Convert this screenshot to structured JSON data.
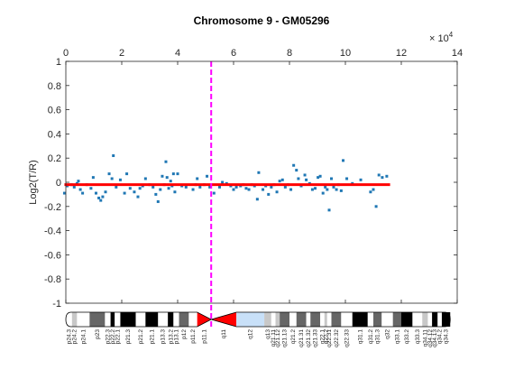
{
  "chart_data": {
    "type": "scatter",
    "title": "Chromosome 9 - GM05296",
    "xlabel": "",
    "ylabel": "Log2(T/R)",
    "x_exponent_label": "× 10",
    "x_exponent_power": "4",
    "xlim": [
      0,
      14
    ],
    "ylim": [
      -1,
      1
    ],
    "x_ticks": [
      "0",
      "2",
      "4",
      "6",
      "8",
      "10",
      "12",
      "14"
    ],
    "y_ticks": [
      "-1",
      "-0.8",
      "-0.6",
      "-0.4",
      "-0.2",
      "0",
      "0.2",
      "0.4",
      "0.6",
      "0.8",
      "1"
    ],
    "grid": false,
    "colors": {
      "points": "#1f77b4",
      "segment": "#ff0000",
      "centromere_line": "#ff00ff",
      "axes": "#262626"
    },
    "segment": {
      "x": [
        -0.05,
        11.6
      ],
      "y": -0.02
    },
    "centromere_x": 5.2,
    "points": [
      [
        -0.05,
        -0.09
      ],
      [
        0.05,
        -0.03
      ],
      [
        0.2,
        -0.02
      ],
      [
        0.3,
        -0.04
      ],
      [
        0.4,
        -0.01
      ],
      [
        0.45,
        0.01
      ],
      [
        0.52,
        -0.06
      ],
      [
        0.6,
        -0.09
      ],
      [
        0.75,
        -0.02
      ],
      [
        0.9,
        -0.05
      ],
      [
        0.98,
        0.04
      ],
      [
        1.08,
        -0.09
      ],
      [
        1.18,
        -0.13
      ],
      [
        1.25,
        -0.15
      ],
      [
        1.32,
        -0.12
      ],
      [
        1.42,
        -0.08
      ],
      [
        1.55,
        0.07
      ],
      [
        1.65,
        0.03
      ],
      [
        1.7,
        0.22
      ],
      [
        1.8,
        -0.04
      ],
      [
        1.95,
        0.02
      ],
      [
        2.1,
        -0.09
      ],
      [
        2.18,
        0.07
      ],
      [
        2.3,
        -0.05
      ],
      [
        2.45,
        -0.08
      ],
      [
        2.58,
        -0.12
      ],
      [
        2.65,
        -0.05
      ],
      [
        2.75,
        -0.03
      ],
      [
        2.85,
        0.03
      ],
      [
        3.0,
        -0.02
      ],
      [
        3.12,
        -0.04
      ],
      [
        3.22,
        -0.1
      ],
      [
        3.3,
        -0.16
      ],
      [
        3.38,
        -0.06
      ],
      [
        3.45,
        0.05
      ],
      [
        3.52,
        -0.02
      ],
      [
        3.58,
        0.17
      ],
      [
        3.62,
        0.04
      ],
      [
        3.68,
        -0.05
      ],
      [
        3.75,
        0.01
      ],
      [
        3.8,
        -0.03
      ],
      [
        3.85,
        0.07
      ],
      [
        3.9,
        -0.08
      ],
      [
        4.0,
        0.07
      ],
      [
        4.15,
        -0.03
      ],
      [
        4.3,
        -0.04
      ],
      [
        4.55,
        -0.06
      ],
      [
        4.65,
        -0.02
      ],
      [
        4.7,
        0.03
      ],
      [
        4.8,
        -0.04
      ],
      [
        4.95,
        -0.02
      ],
      [
        5.05,
        0.05
      ],
      [
        5.15,
        -0.04
      ],
      [
        5.3,
        -0.09
      ],
      [
        5.5,
        -0.04
      ],
      [
        5.6,
        0.0
      ],
      [
        5.75,
        -0.01
      ],
      [
        5.9,
        -0.03
      ],
      [
        6.0,
        -0.06
      ],
      [
        6.1,
        -0.04
      ],
      [
        6.25,
        -0.03
      ],
      [
        6.35,
        -0.02
      ],
      [
        6.45,
        -0.05
      ],
      [
        6.55,
        -0.06
      ],
      [
        6.65,
        -0.02
      ],
      [
        6.75,
        -0.03
      ],
      [
        6.85,
        -0.14
      ],
      [
        6.9,
        0.08
      ],
      [
        7.05,
        -0.06
      ],
      [
        7.15,
        -0.03
      ],
      [
        7.25,
        -0.1
      ],
      [
        7.35,
        -0.04
      ],
      [
        7.45,
        -0.02
      ],
      [
        7.55,
        -0.08
      ],
      [
        7.65,
        0.01
      ],
      [
        7.75,
        0.02
      ],
      [
        7.85,
        -0.04
      ],
      [
        7.95,
        -0.02
      ],
      [
        8.05,
        -0.06
      ],
      [
        8.15,
        0.14
      ],
      [
        8.25,
        0.1
      ],
      [
        8.32,
        0.03
      ],
      [
        8.42,
        -0.03
      ],
      [
        8.55,
        0.06
      ],
      [
        8.6,
        0.02
      ],
      [
        8.72,
        -0.01
      ],
      [
        8.82,
        -0.06
      ],
      [
        8.92,
        -0.05
      ],
      [
        9.02,
        0.04
      ],
      [
        9.1,
        0.05
      ],
      [
        9.2,
        -0.09
      ],
      [
        9.28,
        -0.04
      ],
      [
        9.35,
        -0.06
      ],
      [
        9.42,
        -0.23
      ],
      [
        9.5,
        0.03
      ],
      [
        9.58,
        -0.04
      ],
      [
        9.68,
        -0.06
      ],
      [
        9.75,
        -0.02
      ],
      [
        9.85,
        -0.07
      ],
      [
        9.92,
        0.18
      ],
      [
        10.05,
        0.03
      ],
      [
        10.25,
        -0.01
      ],
      [
        10.55,
        0.02
      ],
      [
        10.9,
        -0.08
      ],
      [
        11.0,
        -0.06
      ],
      [
        11.1,
        -0.2
      ],
      [
        11.2,
        0.06
      ],
      [
        11.32,
        0.04
      ],
      [
        11.48,
        0.05
      ]
    ],
    "ideogram": {
      "bands": [
        {
          "label": "p24.3",
          "x0": 0.0,
          "x1": 0.22,
          "color": "#ffffff"
        },
        {
          "label": "p24.2",
          "x0": 0.22,
          "x1": 0.4,
          "color": "#c8c8c8"
        },
        {
          "label": "p24.1",
          "x0": 0.4,
          "x1": 0.85,
          "color": "#ffffff"
        },
        {
          "label": "p23",
          "x0": 0.85,
          "x1": 1.4,
          "color": "#666666"
        },
        {
          "label": "p22.3",
          "x0": 1.4,
          "x1": 1.6,
          "color": "#ffffff"
        },
        {
          "label": "p22.2",
          "x0": 1.6,
          "x1": 1.75,
          "color": "#000000"
        },
        {
          "label": "p22.1",
          "x0": 1.75,
          "x1": 1.95,
          "color": "#ffffff"
        },
        {
          "label": "p21.3",
          "x0": 1.95,
          "x1": 2.5,
          "color": "#000000"
        },
        {
          "label": "p21.2",
          "x0": 2.5,
          "x1": 2.85,
          "color": "#ffffff"
        },
        {
          "label": "p21.1",
          "x0": 2.85,
          "x1": 3.3,
          "color": "#000000"
        },
        {
          "label": "p13.3",
          "x0": 3.3,
          "x1": 3.65,
          "color": "#ffffff"
        },
        {
          "label": "p13.2",
          "x0": 3.65,
          "x1": 3.85,
          "color": "#000000"
        },
        {
          "label": "p13.1",
          "x0": 3.85,
          "x1": 4.05,
          "color": "#ffffff"
        },
        {
          "label": "p12",
          "x0": 4.05,
          "x1": 4.4,
          "color": "#666666"
        },
        {
          "label": "p11.2",
          "x0": 4.4,
          "x1": 4.7,
          "color": "#ffffff"
        },
        {
          "label": "p11.1",
          "x0": 4.7,
          "x1": 5.2,
          "color": "#ff0000"
        },
        {
          "label": "q11",
          "x0": 5.2,
          "x1": 6.1,
          "color": "#ff0000"
        },
        {
          "label": "q12",
          "x0": 6.1,
          "x1": 7.1,
          "color": "#c8e0f8"
        },
        {
          "label": "q13",
          "x0": 7.1,
          "x1": 7.35,
          "color": "#c8c8c8"
        },
        {
          "label": "q21.11",
          "x0": 7.35,
          "x1": 7.5,
          "color": "#ffffff"
        },
        {
          "label": "q21.12",
          "x0": 7.5,
          "x1": 7.65,
          "color": "#c8c8c8"
        },
        {
          "label": "q21.13",
          "x0": 7.65,
          "x1": 8.0,
          "color": "#666666"
        },
        {
          "label": "q21.2",
          "x0": 8.0,
          "x1": 8.25,
          "color": "#ffffff"
        },
        {
          "label": "q21.31",
          "x0": 8.25,
          "x1": 8.6,
          "color": "#666666"
        },
        {
          "label": "q21.32",
          "x0": 8.6,
          "x1": 8.75,
          "color": "#ffffff"
        },
        {
          "label": "q21.33",
          "x0": 8.75,
          "x1": 9.1,
          "color": "#666666"
        },
        {
          "label": "q22.1",
          "x0": 9.1,
          "x1": 9.25,
          "color": "#ffffff"
        },
        {
          "label": "q22.2",
          "x0": 9.25,
          "x1": 9.35,
          "color": "#c8c8c8"
        },
        {
          "label": "q22.31",
          "x0": 9.35,
          "x1": 9.5,
          "color": "#ffffff"
        },
        {
          "label": "q22.32",
          "x0": 9.5,
          "x1": 9.85,
          "color": "#666666"
        },
        {
          "label": "q22.33",
          "x0": 9.85,
          "x1": 10.25,
          "color": "#ffffff"
        },
        {
          "label": "q31.1",
          "x0": 10.25,
          "x1": 10.8,
          "color": "#000000"
        },
        {
          "label": "q31.2",
          "x0": 10.8,
          "x1": 11.0,
          "color": "#ffffff"
        },
        {
          "label": "q31.3",
          "x0": 11.0,
          "x1": 11.3,
          "color": "#666666"
        },
        {
          "label": "q32",
          "x0": 11.3,
          "x1": 11.7,
          "color": "#ffffff"
        },
        {
          "label": "q33.1",
          "x0": 11.7,
          "x1": 12.0,
          "color": "#666666"
        },
        {
          "label": "q33.2",
          "x0": 12.0,
          "x1": 12.4,
          "color": "#000000"
        },
        {
          "label": "q33.3",
          "x0": 12.4,
          "x1": 12.75,
          "color": "#ffffff"
        },
        {
          "label": "q34.11",
          "x0": 12.75,
          "x1": 12.95,
          "color": "#c8c8c8"
        },
        {
          "label": "q34.12",
          "x0": 12.95,
          "x1": 13.1,
          "color": "#ffffff"
        },
        {
          "label": "q34.13",
          "x0": 13.1,
          "x1": 13.3,
          "color": "#000000"
        },
        {
          "label": "q34.2",
          "x0": 13.3,
          "x1": 13.45,
          "color": "#ffffff"
        },
        {
          "label": "q34.3",
          "x0": 13.45,
          "x1": 13.75,
          "color": "#000000"
        }
      ]
    }
  }
}
